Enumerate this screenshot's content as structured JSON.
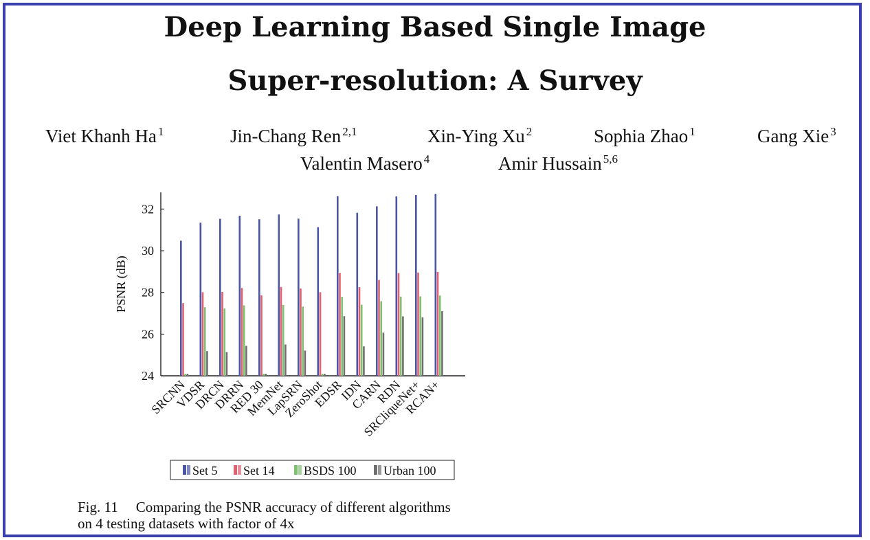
{
  "paper": {
    "title_line1": "Deep Learning Based Single Image",
    "title_line2": "Super-resolution: A Survey",
    "authors": [
      {
        "name": "Viet Khanh Ha",
        "affil": "1"
      },
      {
        "name": "Jin-Chang Ren",
        "affil": "2,1"
      },
      {
        "name": "Xin-Ying Xu",
        "affil": "2"
      },
      {
        "name": "Sophia Zhao",
        "affil": "1"
      },
      {
        "name": "Gang Xie",
        "affil": "3"
      },
      {
        "name": "Valentin Masero",
        "affil": "4"
      },
      {
        "name": "Amir Hussain",
        "affil": "5,6"
      }
    ],
    "caption_label": "Fig. 11",
    "caption_line1": "Comparing the PSNR accuracy of different algorithms",
    "caption_line2": "on 4 testing datasets with factor of 4x"
  },
  "chart_data": {
    "type": "bar",
    "ylabel": "PSNR (dB)",
    "ylim": [
      24,
      32.8
    ],
    "yticks": [
      24,
      26,
      28,
      30,
      32
    ],
    "legend_position": "bottom",
    "categories": [
      "SRCNN",
      "VDSR",
      "DRCN",
      "DRRN",
      "RED 30",
      "MemNet",
      "LapSRN",
      "ZeroShot",
      "EDSR",
      "IDN",
      "CARN",
      "RDN",
      "SRCliqueNet+",
      "RCAN+"
    ],
    "series": [
      {
        "name": "Set 5",
        "color": "#4a55a6",
        "values": [
          30.48,
          31.35,
          31.53,
          31.68,
          31.51,
          31.74,
          31.54,
          31.13,
          32.62,
          31.82,
          32.13,
          32.61,
          32.67,
          32.73
        ]
      },
      {
        "name": "Set 14",
        "color": "#e06070",
        "values": [
          27.49,
          28.01,
          28.02,
          28.21,
          27.86,
          28.26,
          28.19,
          28.01,
          28.94,
          28.25,
          28.6,
          28.93,
          28.95,
          28.98
        ]
      },
      {
        "name": "BSDS 100",
        "color": "#7cc26e",
        "values": [
          null,
          27.29,
          27.23,
          27.38,
          null,
          27.4,
          27.32,
          null,
          27.79,
          27.41,
          27.58,
          27.8,
          27.81,
          27.85
        ]
      },
      {
        "name": "Urban 100",
        "color": "#6e6e6e",
        "values": [
          null,
          25.18,
          25.14,
          25.44,
          null,
          25.5,
          25.21,
          null,
          26.86,
          25.41,
          26.07,
          26.85,
          26.8,
          27.1
        ]
      }
    ]
  }
}
